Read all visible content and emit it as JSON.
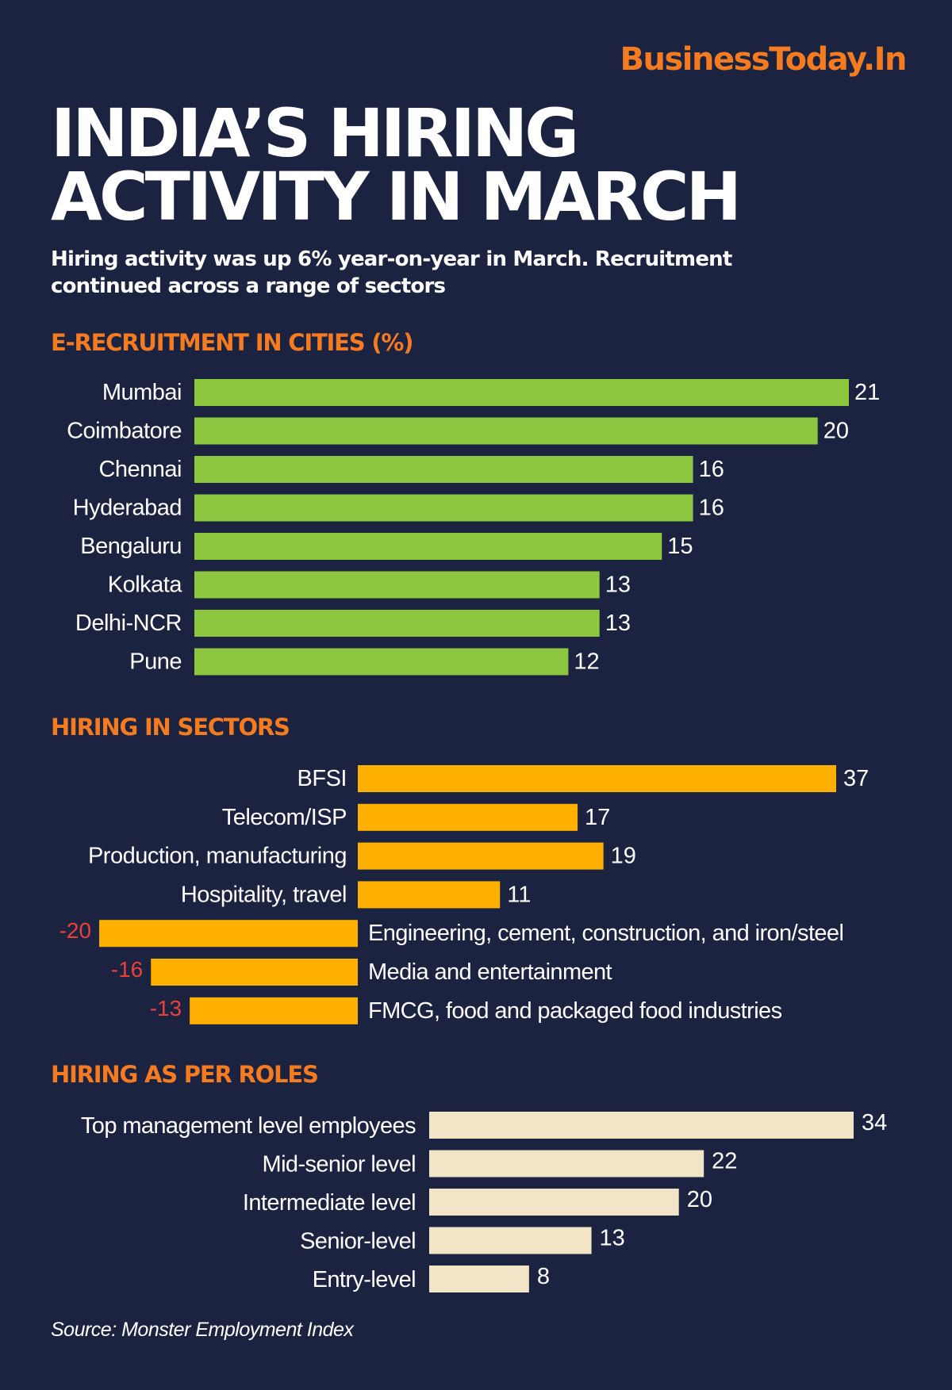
{
  "brand": "BusinessToday.In",
  "title_lines": [
    "INDIA’S HIRING",
    "ACTIVITY IN MARCH"
  ],
  "subtitle": "Hiring activity was up 6% year-on-year in March. Recruitment continued across a range of sectors",
  "colors": {
    "background": "#1c2340",
    "accent": "#f47b20",
    "cities_bar": "#8dc63f",
    "sectors_bar": "#ffb000",
    "roles_bar": "#f2e4c6",
    "negative_label": "#e8413a"
  },
  "chart_data": [
    {
      "id": "cities",
      "type": "bar",
      "orientation": "horizontal",
      "title": "E-RECRUITMENT IN CITIES (%)",
      "categories": [
        "Mumbai",
        "Coimbatore",
        "Chennai",
        "Hyderabad",
        "Bengaluru",
        "Kolkata",
        "Delhi-NCR",
        "Pune"
      ],
      "values": [
        21,
        20,
        16,
        16,
        15,
        13,
        13,
        12
      ],
      "value_labels": [
        "21",
        "20",
        "16",
        "16",
        "15",
        "13",
        "13",
        "12"
      ],
      "xlim": [
        0,
        21
      ]
    },
    {
      "id": "sectors",
      "type": "bar",
      "orientation": "horizontal",
      "title": "HIRING IN SECTORS",
      "categories": [
        "BFSI",
        "Telecom/ISP",
        "Production, manufacturing",
        "Hospitality, travel",
        "Engineering, cement, construction, and iron/steel",
        "Media and entertainment",
        "FMCG, food and packaged food industries"
      ],
      "values": [
        37,
        17,
        19,
        11,
        -20,
        -16,
        -13
      ],
      "value_labels": [
        "37",
        "17",
        "19",
        "11",
        "-20",
        "-16",
        "-13"
      ],
      "xlim": [
        -20,
        37
      ]
    },
    {
      "id": "roles",
      "type": "bar",
      "orientation": "horizontal",
      "title": "HIRING AS PER ROLES",
      "categories": [
        "Top management level employees",
        "Mid-senior level",
        "Intermediate level",
        "Senior-level",
        "Entry-level"
      ],
      "values": [
        34,
        22,
        20,
        13,
        8
      ],
      "value_labels": [
        "34",
        "22",
        "20",
        "13",
        "8"
      ],
      "xlim": [
        0,
        34
      ]
    }
  ],
  "source": "Source: Monster Employment Index"
}
